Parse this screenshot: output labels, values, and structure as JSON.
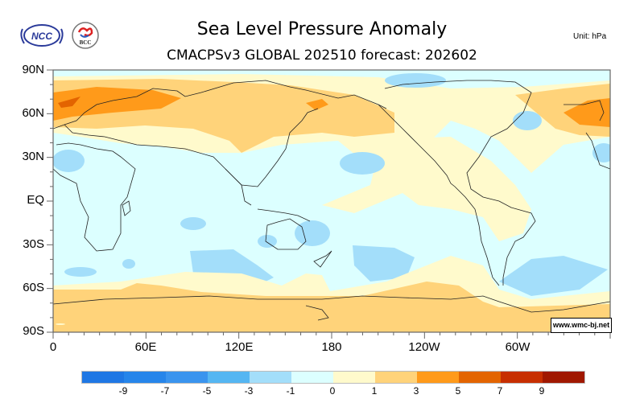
{
  "header": {
    "title": "Sea Level Pressure Anomaly",
    "subtitle": "CMACPSv3 GLOBAL 202510 forecast: 202602",
    "unit": "Unit: hPa",
    "logos": [
      "ncc-logo",
      "bcc-logo"
    ],
    "logo_text": {
      "ncc": "NCC",
      "bcc": "BCC"
    }
  },
  "map": {
    "y_axis_labels": [
      "90N",
      "60N",
      "30N",
      "EQ",
      "30S",
      "60S",
      "90S"
    ],
    "x_axis_labels": [
      "0",
      "60E",
      "120E",
      "180",
      "120W",
      "60W"
    ],
    "credit": "www.wmc-bj.net"
  },
  "colorbar": {
    "colors": [
      "#1f77e4",
      "#2685ea",
      "#3a94ee",
      "#55b6f2",
      "#a3defa",
      "#dcffff",
      "#fffacc",
      "#ffd37a",
      "#ff9a1a",
      "#e36400",
      "#c72f00",
      "#a01800"
    ],
    "labels": [
      "-9",
      "-7",
      "-5",
      "-3",
      "-1",
      "0",
      "1",
      "3",
      "5",
      "7",
      "9"
    ]
  },
  "colors": {
    "neg1": "#a3defa",
    "neutral_neg": "#dcffff",
    "neutral_pos": "#fffacc",
    "pos1": "#ffd37a",
    "pos3": "#ff9a1a",
    "pos5": "#e36400",
    "coast": "#222222"
  }
}
